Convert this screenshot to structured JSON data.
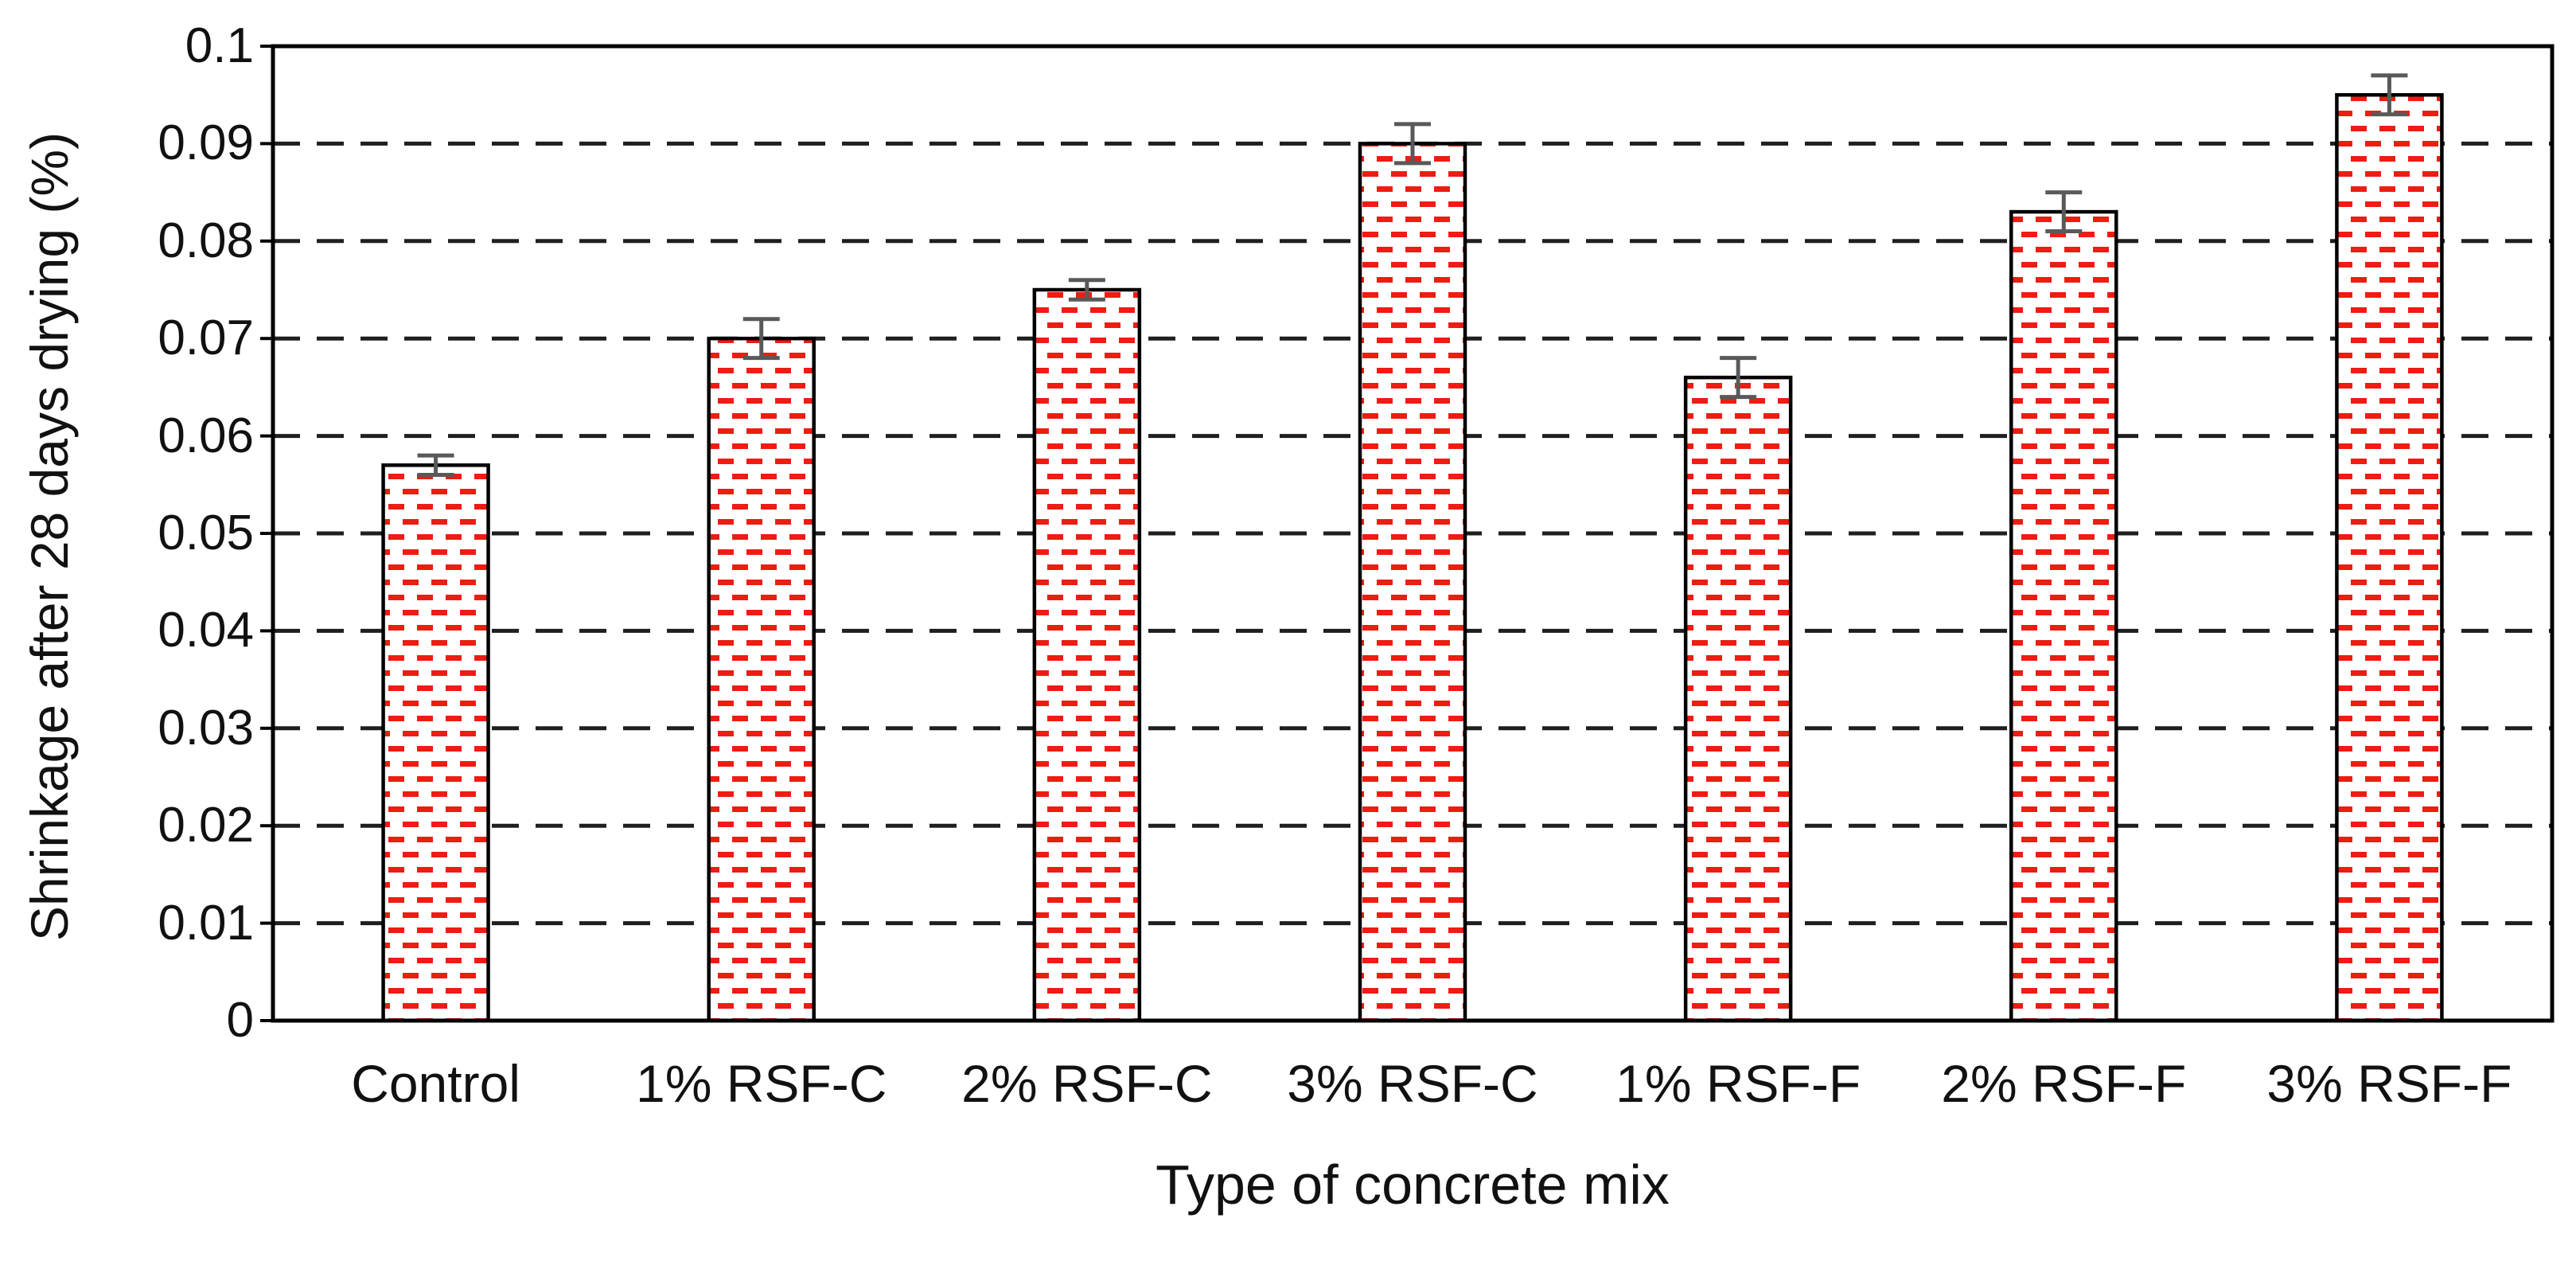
{
  "chart_data": {
    "type": "bar",
    "title": "",
    "xlabel": "Type of concrete mix",
    "ylabel": "Shrinkage after 28 days drying (%)",
    "categories": [
      "Control",
      "1% RSF-C",
      "2% RSF-C",
      "3% RSF-C",
      "1% RSF-F",
      "2% RSF-F",
      "3% RSF-F"
    ],
    "values": [
      0.057,
      0.07,
      0.075,
      0.09,
      0.066,
      0.083,
      0.095
    ],
    "error_bars": [
      0.001,
      0.002,
      0.001,
      0.002,
      0.002,
      0.002,
      0.002
    ],
    "ylim": [
      0,
      0.1
    ],
    "ytick_values": [
      0,
      0.01,
      0.02,
      0.03,
      0.04,
      0.05,
      0.06,
      0.07,
      0.08,
      0.09,
      0.1
    ],
    "ytick_labels": [
      "0",
      "0.01",
      "0.02",
      "0.03",
      "0.04",
      "0.05",
      "0.06",
      "0.07",
      "0.08",
      "0.09",
      "0.1"
    ],
    "grid": "horizontal-dashed",
    "legend": "none",
    "colors": {
      "bar_fill": "#ffffff",
      "bar_pattern_red": "#ee1c12",
      "bar_border": "#000000",
      "gridline": "#1f1f1f",
      "error_bar": "#595959",
      "axis": "#000000",
      "text": "#111111"
    }
  }
}
